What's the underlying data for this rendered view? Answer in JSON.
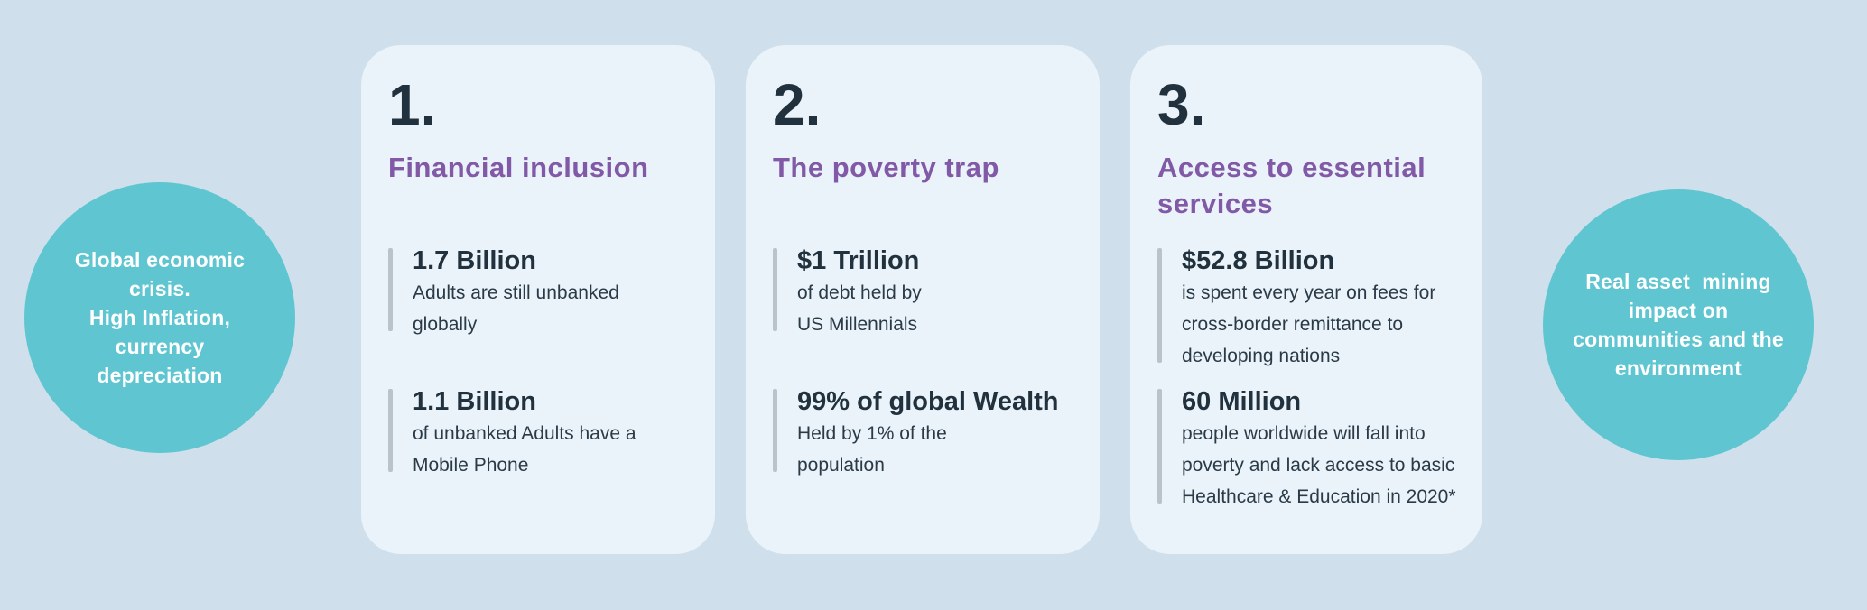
{
  "colors": {
    "background": "#cfe0ec",
    "card_background": "#e9f3f9",
    "circle_fill": "#5fc6d1",
    "heading_purple": "#8159a6",
    "text_dark": "#22313e",
    "desc_color": "#2b3a47",
    "bar_gray": "#b9c3c9",
    "circle_text": "#ffffff"
  },
  "left_circle": {
    "text": "Global economic\ncrisis.\nHigh Inflation,\ncurrency\ndepreciation"
  },
  "right_circle": {
    "text": "Real asset  mining\nimpact on\ncommunities and the\nenvironment"
  },
  "cards": [
    {
      "number": "1.",
      "title": "Financial inclusion",
      "stats": [
        {
          "value": "1.7 Billion",
          "description": "Adults are still unbanked\nglobally"
        },
        {
          "value": "1.1 Billion",
          "description": "of unbanked Adults have a\nMobile Phone"
        }
      ]
    },
    {
      "number": "2.",
      "title": "The poverty trap",
      "stats": [
        {
          "value": "$1 Trillion",
          "description": "of debt held by\nUS Millennials"
        },
        {
          "value": "99% of global Wealth",
          "description": "Held by 1% of the\npopulation"
        }
      ]
    },
    {
      "number": "3.",
      "title": "Access to essential\nservices",
      "stats": [
        {
          "value": "$52.8 Billion",
          "description": "is spent every year on fees for\ncross-border remittance to\ndeveloping nations"
        },
        {
          "value": "60 Million",
          "description": "people worldwide will fall into\npoverty and lack access to basic\nHealthcare & Education in 2020*"
        }
      ]
    }
  ]
}
